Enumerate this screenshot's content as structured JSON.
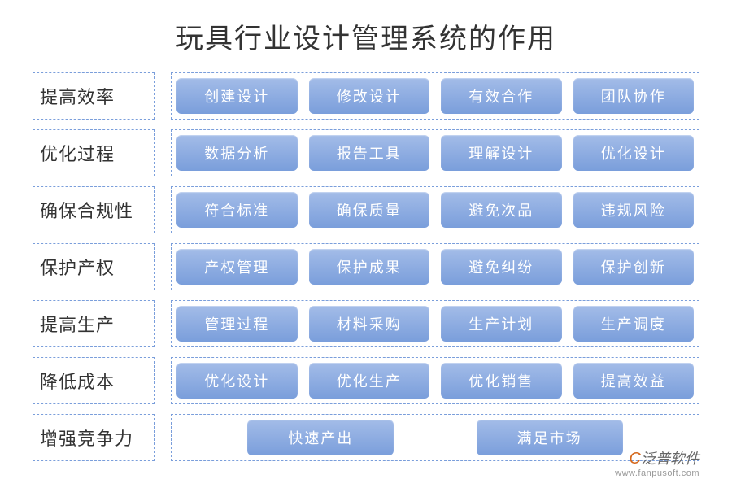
{
  "title": "玩具行业设计管理系统的作用",
  "rows": [
    {
      "label": "提高效率",
      "items": [
        "创建设计",
        "修改设计",
        "有效合作",
        "团队协作"
      ]
    },
    {
      "label": "优化过程",
      "items": [
        "数据分析",
        "报告工具",
        "理解设计",
        "优化设计"
      ]
    },
    {
      "label": "确保合规性",
      "items": [
        "符合标准",
        "确保质量",
        "避免次品",
        "违规风险"
      ]
    },
    {
      "label": "保护产权",
      "items": [
        "产权管理",
        "保护成果",
        "避免纠纷",
        "保护创新"
      ]
    },
    {
      "label": "提高生产",
      "items": [
        "管理过程",
        "材料采购",
        "生产计划",
        "生产调度"
      ]
    },
    {
      "label": "降低成本",
      "items": [
        "优化设计",
        "优化生产",
        "优化销售",
        "提高效益"
      ]
    },
    {
      "label": "增强竞争力",
      "items": [
        "快速产出",
        "满足市场"
      ]
    }
  ],
  "watermark": {
    "brand_accent": "C",
    "brand_text": "泛普软件",
    "url": "www.fanpusoft.com"
  },
  "styling": {
    "title_fontsize": 34,
    "title_color": "#333333",
    "label_fontsize": 22,
    "label_color": "#333333",
    "tag_fontsize": 18,
    "tag_text_color": "#ffffff",
    "tag_gradient_top": "#a3bce8",
    "tag_gradient_bottom": "#7a9edb",
    "tag_border_radius": 6,
    "dashed_border_color": "#7a9edb",
    "background_color": "#ffffff",
    "row_gap": 12,
    "tag_letterspacing": 2,
    "watermark_accent_color": "#d4661a",
    "watermark_text_color": "#666666",
    "watermark_url_color": "#999999"
  }
}
